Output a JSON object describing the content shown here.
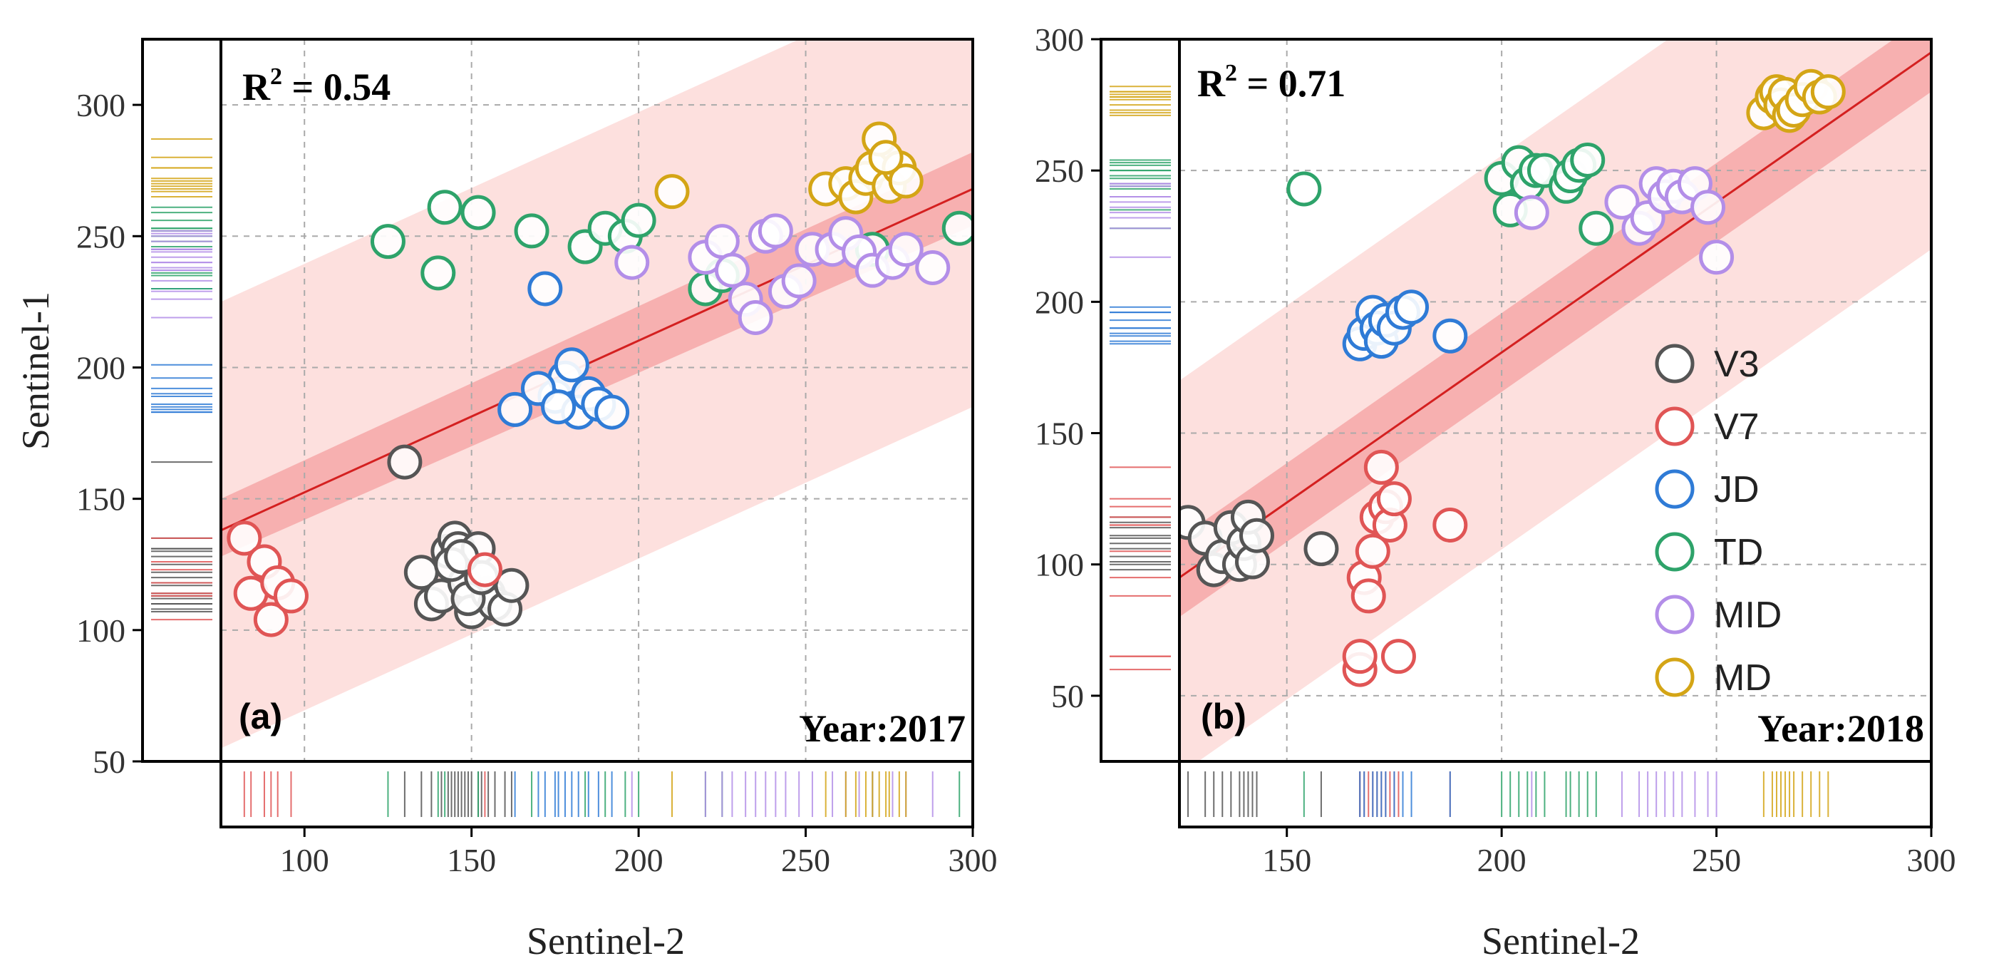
{
  "chart_data": [
    {
      "type": "scatter",
      "panel_label": "(a)",
      "year_label": "Year:2017",
      "r2_label": "R",
      "r2_sup": "2",
      "r2_value": " = 0.54",
      "xlabel": "Sentinel-2",
      "ylabel": "Sentinel-1",
      "xlim": [
        75,
        300
      ],
      "ylim": [
        50,
        325
      ],
      "xticks": [
        100,
        150,
        200,
        250,
        300
      ],
      "yticks": [
        50,
        100,
        150,
        200,
        250,
        300
      ],
      "fit": {
        "x": [
          75,
          300
        ],
        "y": [
          138,
          268
        ]
      },
      "confidence_band": {
        "x": [
          75,
          300
        ],
        "y_low": [
          128,
          254
        ],
        "y_high": [
          150,
          282
        ]
      },
      "prediction_band": {
        "x": [
          75,
          300
        ],
        "y_low": [
          55,
          185
        ],
        "y_high": [
          225,
          355
        ]
      },
      "series": [
        {
          "name": "V3",
          "color": "#555555",
          "x": [
            130,
            135,
            138,
            141,
            143,
            145,
            146,
            148,
            150,
            152,
            155,
            157,
            160,
            162,
            144,
            149,
            153,
            147
          ],
          "y": [
            164,
            122,
            110,
            113,
            130,
            135,
            131,
            118,
            107,
            131,
            114,
            110,
            108,
            117,
            125,
            112,
            120,
            128
          ]
        },
        {
          "name": "V7",
          "color": "#e05555",
          "x": [
            82,
            84,
            88,
            90,
            92,
            96,
            154
          ],
          "y": [
            135,
            114,
            126,
            104,
            118,
            113,
            123
          ]
        },
        {
          "name": "JD",
          "color": "#2f7bd6",
          "x": [
            163,
            172,
            175,
            178,
            180,
            182,
            185,
            188,
            192,
            170,
            176
          ],
          "y": [
            184,
            230,
            189,
            196,
            201,
            183,
            190,
            186,
            183,
            192,
            185
          ]
        },
        {
          "name": "TD",
          "color": "#2ea36a",
          "x": [
            125,
            140,
            142,
            152,
            168,
            184,
            190,
            196,
            200,
            220,
            225,
            270,
            296
          ],
          "y": [
            248,
            236,
            261,
            259,
            252,
            246,
            253,
            250,
            256,
            230,
            235,
            245,
            253
          ]
        },
        {
          "name": "MID",
          "color": "#b38ee8",
          "x": [
            198,
            220,
            225,
            228,
            232,
            235,
            238,
            241,
            244,
            248,
            252,
            258,
            262,
            266,
            270,
            276,
            280,
            288
          ],
          "y": [
            240,
            242,
            248,
            237,
            226,
            219,
            250,
            252,
            229,
            233,
            245,
            245,
            251,
            244,
            237,
            240,
            245,
            238
          ]
        },
        {
          "name": "MD",
          "color": "#d4a516",
          "x": [
            210,
            256,
            262,
            265,
            268,
            270,
            272,
            275,
            278,
            280,
            274
          ],
          "y": [
            267,
            268,
            270,
            265,
            272,
            276,
            287,
            269,
            276,
            271,
            280
          ]
        }
      ]
    },
    {
      "type": "scatter",
      "panel_label": "(b)",
      "year_label": "Year:2018",
      "r2_label": "R",
      "r2_sup": "2",
      "r2_value": " = 0.71",
      "xlabel": "Sentinel-2",
      "ylabel": "",
      "xlim": [
        125,
        300
      ],
      "ylim": [
        25,
        300
      ],
      "xticks": [
        150,
        200,
        250,
        300
      ],
      "yticks": [
        50,
        100,
        150,
        200,
        250,
        300
      ],
      "fit": {
        "x": [
          125,
          300
        ],
        "y": [
          95,
          295
        ]
      },
      "confidence_band": {
        "x": [
          125,
          300
        ],
        "y_low": [
          80,
          280
        ],
        "y_high": [
          110,
          310
        ]
      },
      "prediction_band": {
        "x": [
          125,
          300
        ],
        "y_low": [
          20,
          220
        ],
        "y_high": [
          170,
          370
        ]
      },
      "series": [
        {
          "name": "V3",
          "color": "#555555",
          "x": [
            127,
            131,
            133,
            135,
            137,
            139,
            140,
            141,
            142,
            143,
            158
          ],
          "y": [
            116,
            110,
            98,
            103,
            114,
            100,
            108,
            118,
            101,
            111,
            106
          ]
        },
        {
          "name": "V7",
          "color": "#e05555",
          "x": [
            167,
            167,
            168,
            169,
            170,
            171,
            172,
            173,
            174,
            175,
            176,
            188
          ],
          "y": [
            60,
            65,
            95,
            88,
            105,
            118,
            137,
            122,
            115,
            125,
            65,
            115
          ]
        },
        {
          "name": "JD",
          "color": "#2f7bd6",
          "x": [
            167,
            168,
            170,
            171,
            172,
            173,
            175,
            177,
            179,
            188
          ],
          "y": [
            184,
            188,
            196,
            190,
            185,
            193,
            190,
            196,
            198,
            187
          ]
        },
        {
          "name": "TD",
          "color": "#2ea36a",
          "x": [
            154,
            200,
            202,
            204,
            206,
            208,
            210,
            215,
            216,
            218,
            220,
            222
          ],
          "y": [
            243,
            247,
            235,
            253,
            245,
            250,
            250,
            244,
            248,
            252,
            254,
            228
          ]
        },
        {
          "name": "MID",
          "color": "#b38ee8",
          "x": [
            207,
            228,
            232,
            234,
            236,
            238,
            240,
            242,
            245,
            248,
            250
          ],
          "y": [
            234,
            238,
            228,
            232,
            245,
            240,
            244,
            240,
            245,
            236,
            217
          ]
        },
        {
          "name": "MD",
          "color": "#d4a516",
          "x": [
            261,
            263,
            264,
            265,
            266,
            267,
            268,
            270,
            272,
            274,
            276
          ],
          "y": [
            272,
            278,
            280,
            275,
            279,
            271,
            273,
            277,
            282,
            278,
            280
          ]
        }
      ]
    }
  ],
  "legend": [
    {
      "label": "V3",
      "color": "#555555"
    },
    {
      "label": "V7",
      "color": "#e05555"
    },
    {
      "label": "JD",
      "color": "#2f7bd6"
    },
    {
      "label": "TD",
      "color": "#2ea36a"
    },
    {
      "label": "MID",
      "color": "#b38ee8"
    },
    {
      "label": "MD",
      "color": "#d4a516"
    }
  ]
}
